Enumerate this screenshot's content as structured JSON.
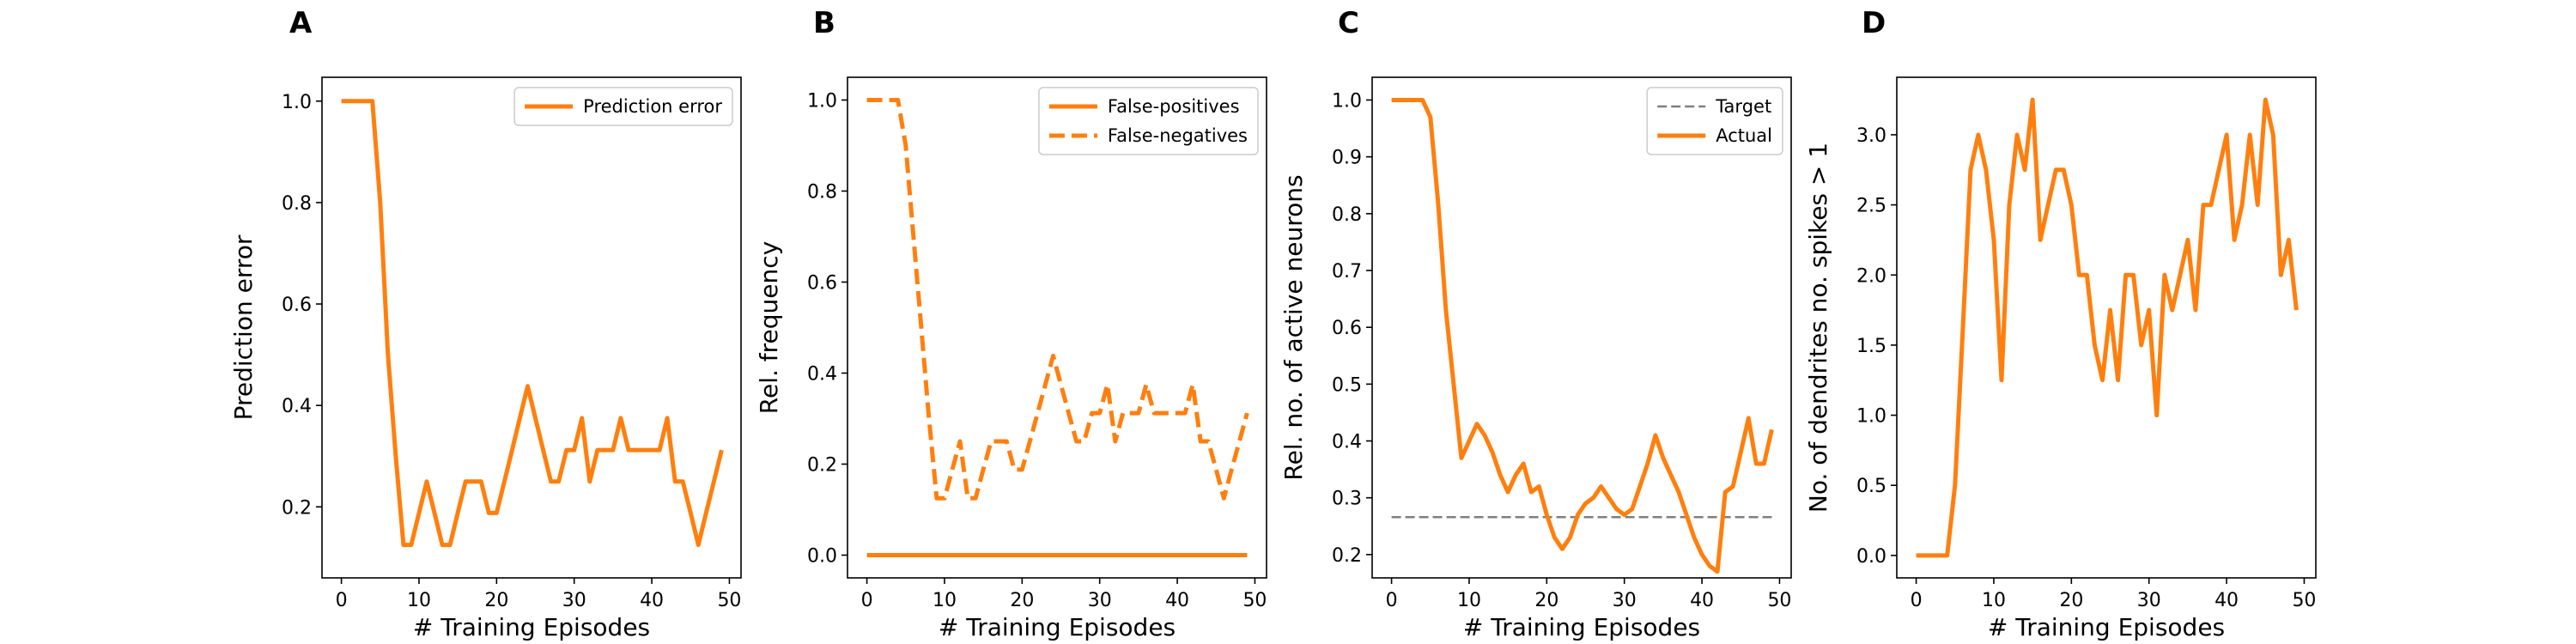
{
  "colors": {
    "series": "#ff7f0e",
    "target": "#7f7f7f",
    "axis": "#000000",
    "legend_border": "#cccccc"
  },
  "chart_data": [
    {
      "panel": "A",
      "type": "line",
      "xlabel": "# Training Episodes",
      "ylabel": "Prediction error",
      "xlim": [
        -2.5,
        51.5
      ],
      "ylim": [
        0.06,
        1.047
      ],
      "xticks": [
        0,
        10,
        20,
        30,
        40,
        50
      ],
      "xtick_labels": [
        "0",
        "10",
        "20",
        "30",
        "40",
        "50"
      ],
      "yticks": [
        0.2,
        0.4,
        0.6,
        0.8,
        1.0
      ],
      "ytick_labels": [
        "0.2",
        "0.4",
        "0.6",
        "0.8",
        "1.0"
      ],
      "legend": "top-right",
      "grid": false,
      "series": [
        {
          "name": "Prediction error",
          "style": "solid",
          "color": "#ff7f0e",
          "x": [
            0,
            1,
            2,
            3,
            4,
            5,
            6,
            7,
            8,
            9,
            10,
            11,
            12,
            13,
            14,
            15,
            16,
            17,
            18,
            19,
            20,
            21,
            22,
            23,
            24,
            25,
            26,
            27,
            28,
            29,
            30,
            31,
            32,
            33,
            34,
            35,
            36,
            37,
            38,
            39,
            40,
            41,
            42,
            43,
            44,
            45,
            46,
            47,
            48,
            49
          ],
          "y": [
            1.0,
            1.0,
            1.0,
            1.0,
            1.0,
            0.8,
            0.5,
            0.3,
            0.125,
            0.125,
            0.188,
            0.25,
            0.188,
            0.125,
            0.125,
            0.188,
            0.25,
            0.25,
            0.25,
            0.188,
            0.188,
            0.25,
            0.312,
            0.375,
            0.438,
            0.375,
            0.312,
            0.25,
            0.25,
            0.312,
            0.312,
            0.375,
            0.25,
            0.312,
            0.312,
            0.312,
            0.375,
            0.312,
            0.312,
            0.312,
            0.312,
            0.312,
            0.375,
            0.25,
            0.25,
            0.188,
            0.125,
            0.188,
            0.25,
            0.312
          ]
        }
      ]
    },
    {
      "panel": "B",
      "type": "line",
      "xlabel": "# Training Episodes",
      "ylabel": "Rel. frequency",
      "xlim": [
        -2.5,
        51.5
      ],
      "ylim": [
        -0.05,
        1.05
      ],
      "xticks": [
        0,
        10,
        20,
        30,
        40,
        50
      ],
      "xtick_labels": [
        "0",
        "10",
        "20",
        "30",
        "40",
        "50"
      ],
      "yticks": [
        0.0,
        0.2,
        0.4,
        0.6,
        0.8,
        1.0
      ],
      "ytick_labels": [
        "0.0",
        "0.2",
        "0.4",
        "0.6",
        "0.8",
        "1.0"
      ],
      "legend": "top-right",
      "grid": false,
      "series": [
        {
          "name": "False-positives",
          "style": "solid",
          "color": "#ff7f0e",
          "x": [
            0,
            49
          ],
          "y": [
            0.0,
            0.0
          ]
        },
        {
          "name": "False-negatives",
          "style": "dashed",
          "color": "#ff7f0e",
          "x": [
            0,
            1,
            2,
            3,
            4,
            5,
            6,
            7,
            8,
            9,
            10,
            11,
            12,
            13,
            14,
            15,
            16,
            17,
            18,
            19,
            20,
            21,
            22,
            23,
            24,
            25,
            26,
            27,
            28,
            29,
            30,
            31,
            32,
            33,
            34,
            35,
            36,
            37,
            38,
            39,
            40,
            41,
            42,
            43,
            44,
            45,
            46,
            47,
            48,
            49
          ],
          "y": [
            1.0,
            1.0,
            1.0,
            1.0,
            1.0,
            0.9,
            0.7,
            0.5,
            0.3,
            0.125,
            0.125,
            0.188,
            0.25,
            0.125,
            0.125,
            0.188,
            0.25,
            0.25,
            0.25,
            0.188,
            0.188,
            0.25,
            0.312,
            0.375,
            0.438,
            0.375,
            0.312,
            0.25,
            0.25,
            0.312,
            0.312,
            0.375,
            0.25,
            0.312,
            0.312,
            0.312,
            0.375,
            0.312,
            0.312,
            0.312,
            0.312,
            0.312,
            0.375,
            0.25,
            0.25,
            0.188,
            0.125,
            0.188,
            0.25,
            0.312
          ]
        }
      ]
    },
    {
      "panel": "C",
      "type": "line",
      "xlabel": "# Training Episodes",
      "ylabel": "Rel. no. of active neurons",
      "xlim": [
        -2.5,
        51.5
      ],
      "ylim": [
        0.159,
        1.04
      ],
      "xticks": [
        0,
        10,
        20,
        30,
        40,
        50
      ],
      "xtick_labels": [
        "0",
        "10",
        "20",
        "30",
        "40",
        "50"
      ],
      "yticks": [
        0.2,
        0.3,
        0.4,
        0.5,
        0.6,
        0.7,
        0.8,
        0.9,
        1.0
      ],
      "ytick_labels": [
        "0.2",
        "0.3",
        "0.4",
        "0.5",
        "0.6",
        "0.7",
        "0.8",
        "0.9",
        "1.0"
      ],
      "legend": "top-right",
      "grid": false,
      "series": [
        {
          "name": "Target",
          "style": "dashed",
          "color": "#7f7f7f",
          "x": [
            0,
            49
          ],
          "y": [
            0.266,
            0.266
          ]
        },
        {
          "name": "Actual",
          "style": "solid",
          "color": "#ff7f0e",
          "x": [
            0,
            1,
            2,
            3,
            4,
            5,
            6,
            7,
            8,
            9,
            10,
            11,
            12,
            13,
            14,
            15,
            16,
            17,
            18,
            19,
            20,
            21,
            22,
            23,
            24,
            25,
            26,
            27,
            28,
            29,
            30,
            31,
            32,
            33,
            34,
            35,
            36,
            37,
            38,
            39,
            40,
            41,
            42,
            43,
            44,
            45,
            46,
            47,
            48,
            49
          ],
          "y": [
            1.0,
            1.0,
            1.0,
            1.0,
            1.0,
            0.97,
            0.82,
            0.63,
            0.5,
            0.37,
            0.4,
            0.43,
            0.41,
            0.38,
            0.34,
            0.31,
            0.34,
            0.36,
            0.31,
            0.32,
            0.27,
            0.23,
            0.21,
            0.23,
            0.27,
            0.29,
            0.3,
            0.32,
            0.3,
            0.28,
            0.27,
            0.28,
            0.32,
            0.36,
            0.41,
            0.37,
            0.34,
            0.31,
            0.27,
            0.23,
            0.2,
            0.18,
            0.17,
            0.31,
            0.32,
            0.38,
            0.44,
            0.36,
            0.36,
            0.42
          ]
        }
      ]
    },
    {
      "panel": "D",
      "type": "line",
      "xlabel": "# Training Episodes",
      "ylabel": "No. of dendrites no. spikes > 1",
      "xlim": [
        -2.5,
        51.5
      ],
      "ylim": [
        -0.16,
        3.41
      ],
      "xticks": [
        0,
        10,
        20,
        30,
        40,
        50
      ],
      "xtick_labels": [
        "0",
        "10",
        "20",
        "30",
        "40",
        "50"
      ],
      "yticks": [
        0.0,
        0.5,
        1.0,
        1.5,
        2.0,
        2.5,
        3.0
      ],
      "ytick_labels": [
        "0.0",
        "0.5",
        "1.0",
        "1.5",
        "2.0",
        "2.5",
        "3.0"
      ],
      "legend": "none",
      "grid": false,
      "series": [
        {
          "name": "",
          "style": "solid",
          "color": "#ff7f0e",
          "x": [
            0,
            1,
            2,
            3,
            4,
            5,
            6,
            7,
            8,
            9,
            10,
            11,
            12,
            13,
            14,
            15,
            16,
            17,
            18,
            19,
            20,
            21,
            22,
            23,
            24,
            25,
            26,
            27,
            28,
            29,
            30,
            31,
            32,
            33,
            34,
            35,
            36,
            37,
            38,
            39,
            40,
            41,
            42,
            43,
            44,
            45,
            46,
            47,
            48,
            49
          ],
          "y": [
            0.0,
            0.0,
            0.0,
            0.0,
            0.0,
            0.5,
            1.6,
            2.75,
            3.0,
            2.75,
            2.25,
            1.25,
            2.5,
            3.0,
            2.75,
            3.25,
            2.25,
            2.5,
            2.75,
            2.75,
            2.5,
            2.0,
            2.0,
            1.5,
            1.25,
            1.75,
            1.25,
            2.0,
            2.0,
            1.5,
            1.75,
            1.0,
            2.0,
            1.75,
            2.0,
            2.25,
            1.75,
            2.5,
            2.5,
            2.75,
            3.0,
            2.25,
            2.5,
            3.0,
            2.5,
            3.25,
            3.0,
            2.0,
            2.25,
            1.75
          ]
        }
      ]
    }
  ]
}
